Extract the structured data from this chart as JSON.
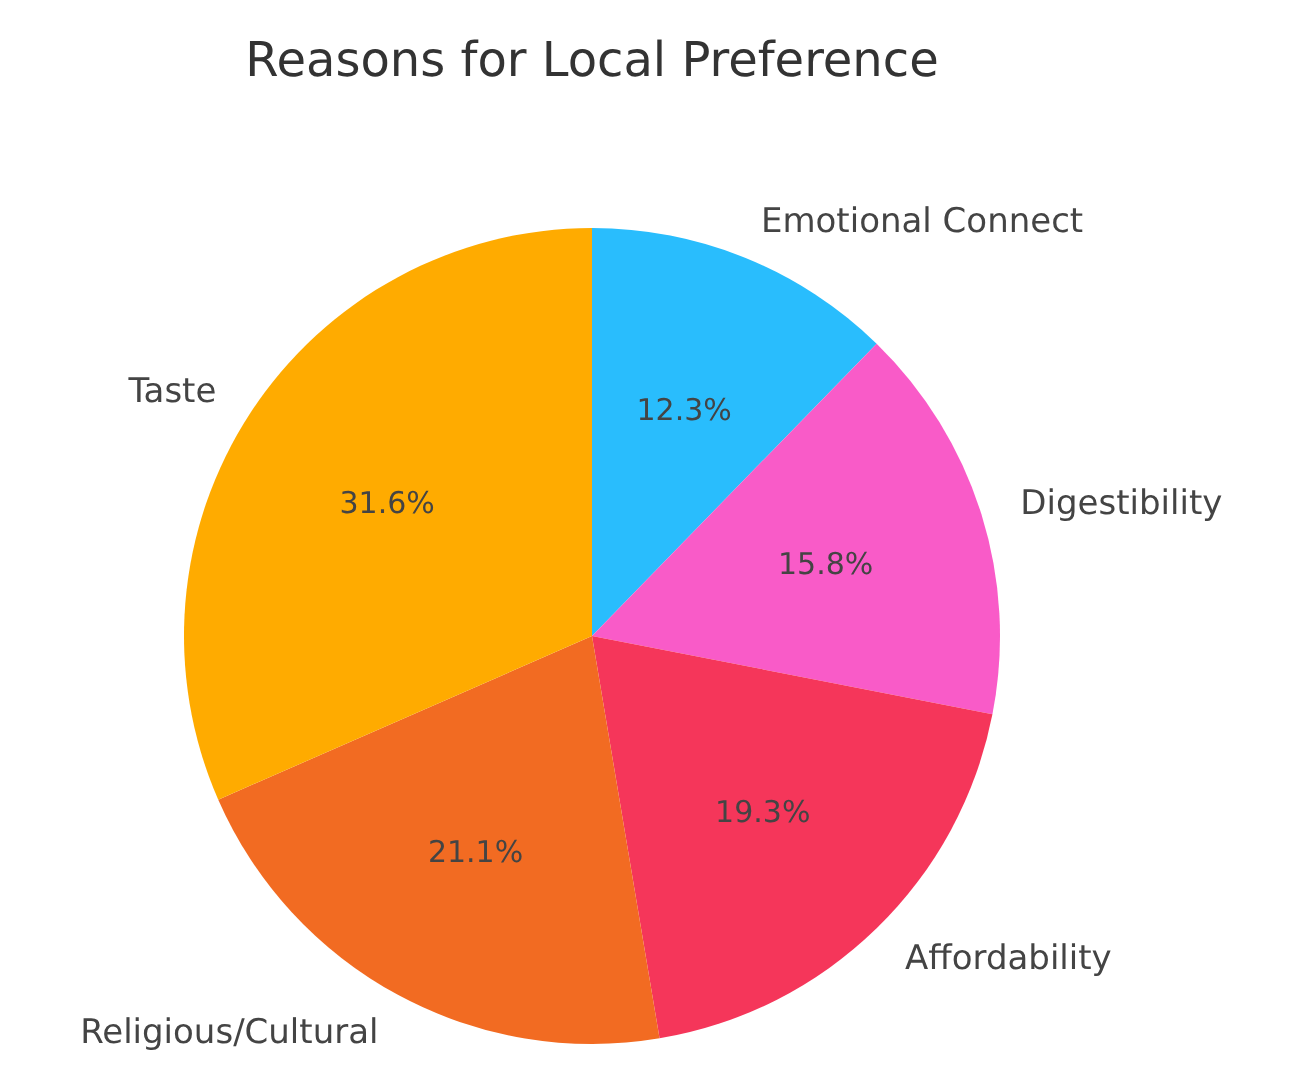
{
  "chart_data": {
    "type": "pie",
    "title": "Reasons for Local Preference",
    "categories": [
      "Emotional Connect",
      "Digestibility",
      "Affordability",
      "Religious/Cultural",
      "Taste"
    ],
    "values": [
      12.3,
      15.8,
      19.3,
      21.1,
      31.6
    ],
    "colors": [
      "#29bdfd",
      "#f95bc8",
      "#f5365a",
      "#f26b22",
      "#ffab00"
    ],
    "value_labels": [
      "12.3%",
      "15.8%",
      "19.3%",
      "21.1%",
      "31.6%"
    ]
  }
}
